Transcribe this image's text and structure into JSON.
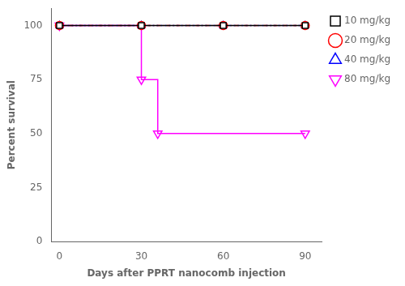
{
  "chart_data": {
    "type": "line",
    "xlabel": "Days after PPRT nanocomb injection",
    "ylabel": "Percent survival",
    "series": [
      {
        "name": "10 mg/kg",
        "color": "#000000",
        "marker": "square",
        "line_style": "solid",
        "x": [
          0,
          30,
          60,
          90
        ],
        "values": [
          100,
          100,
          100,
          100
        ]
      },
      {
        "name": "20 mg/kg",
        "color": "#ff0000",
        "marker": "circle",
        "line_style": "dashdot",
        "x": [
          0,
          30,
          60,
          90
        ],
        "values": [
          100,
          100,
          100,
          100
        ]
      },
      {
        "name": "40 mg/kg",
        "color": "#0000ff",
        "marker": "triangle",
        "line_style": "dotted",
        "x": [
          0,
          30,
          60,
          90
        ],
        "values": [
          100,
          100,
          100,
          100
        ]
      },
      {
        "name": "80 mg/kg",
        "color": "#ff00ff",
        "marker": "triangle_down",
        "line_style": "solid",
        "x": [
          0,
          30,
          30,
          36,
          36,
          90
        ],
        "values": [
          100,
          100,
          75,
          75,
          50,
          50
        ],
        "marker_x": [
          0,
          30,
          36,
          90
        ],
        "marker_values": [
          100,
          75,
          50,
          50
        ]
      }
    ],
    "xlim": [
      -3,
      96
    ],
    "ylim": [
      0,
      108
    ],
    "xticks": [
      0,
      30,
      60,
      90
    ],
    "yticks": [
      0,
      25,
      50,
      75,
      100
    ],
    "grid": false,
    "legend": "right"
  }
}
